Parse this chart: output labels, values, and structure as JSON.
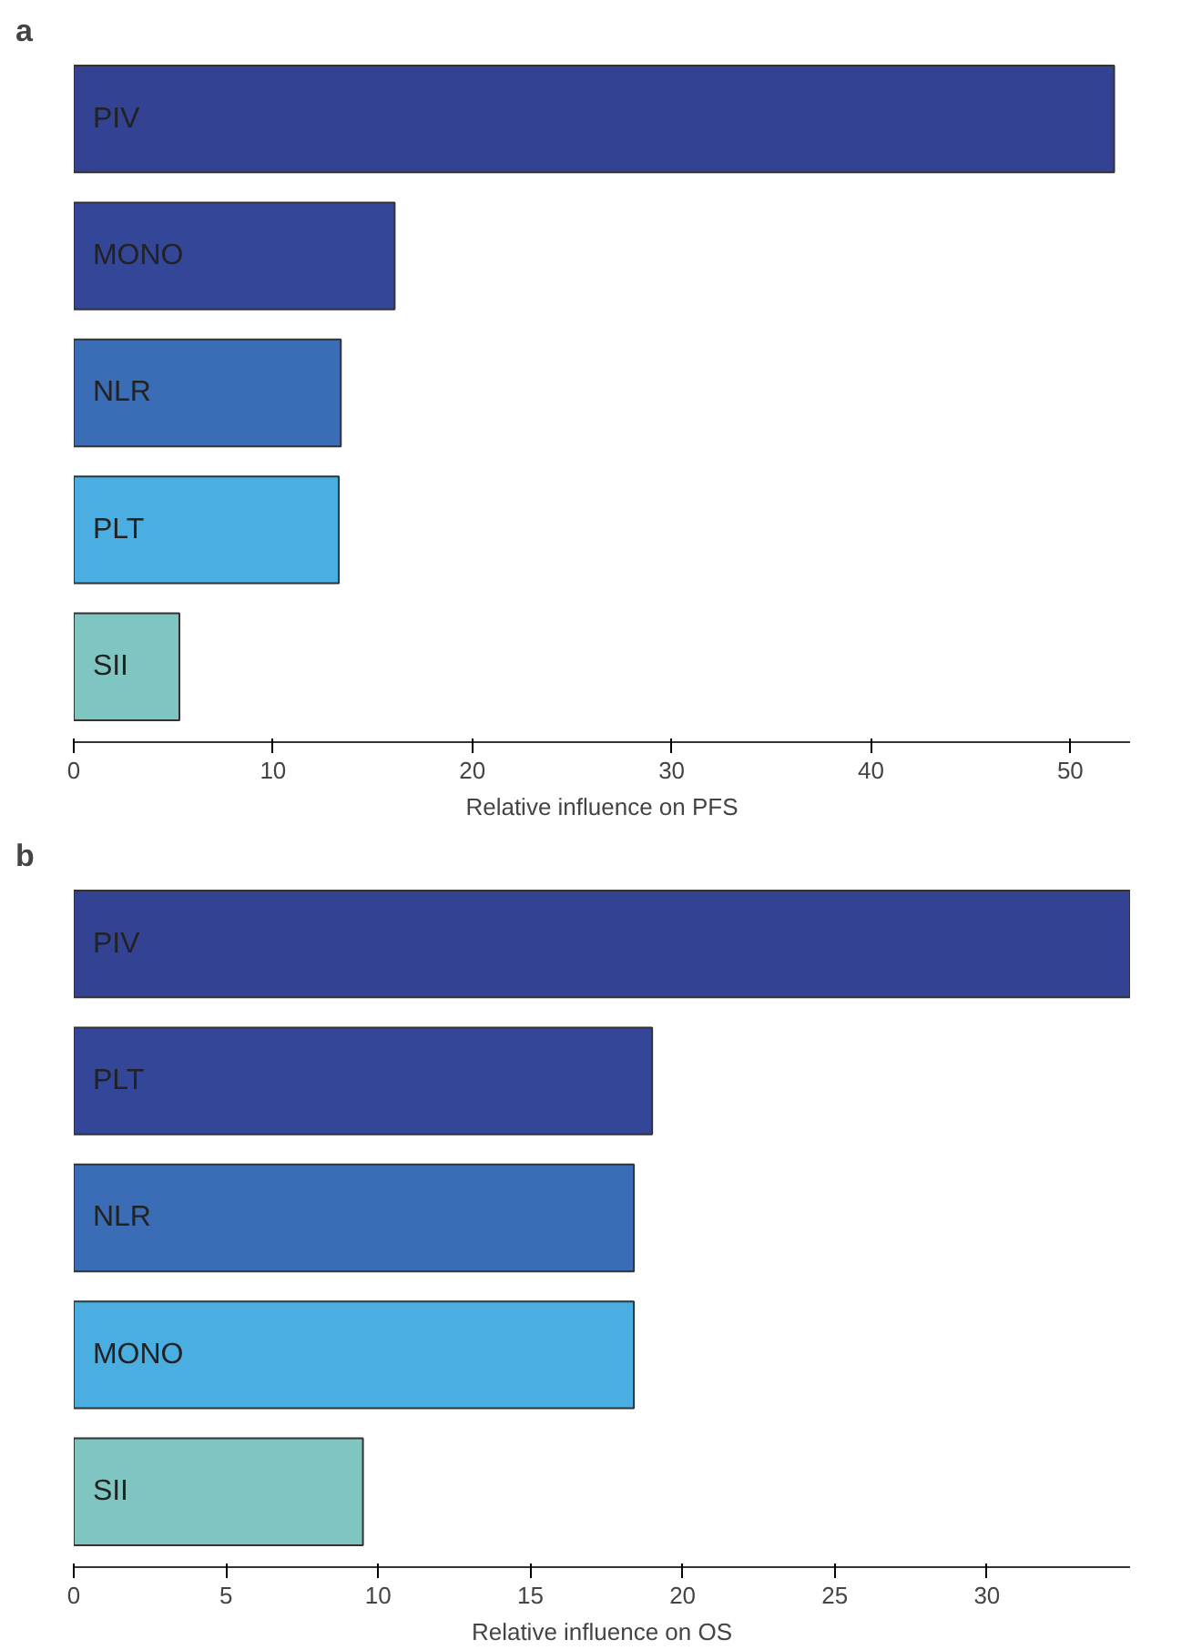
{
  "chart_data": [
    {
      "type": "bar",
      "orientation": "horizontal",
      "title": "a",
      "xlabel": "Relative influence on PFS",
      "categories": [
        "PIV",
        "MONO",
        "NLR",
        "PLT",
        "SII"
      ],
      "values": [
        52.2,
        16.1,
        13.4,
        13.3,
        5.3
      ],
      "colors": [
        "#344293",
        "#344698",
        "#3a6db5",
        "#4aaee0",
        "#7fc6c3"
      ],
      "xlim": [
        0,
        53
      ],
      "xticks": [
        0,
        10,
        20,
        30,
        40,
        50
      ],
      "tick_labels": "x"
    },
    {
      "type": "bar",
      "orientation": "horizontal",
      "title": "b",
      "xlabel": "Relative influence on OS",
      "categories": [
        "PIV",
        "PLT",
        "NLR",
        "MONO",
        "SII"
      ],
      "values": [
        34.7,
        19.0,
        18.4,
        18.4,
        9.5
      ],
      "colors": [
        "#344293",
        "#344698",
        "#3a6db5",
        "#4aaee0",
        "#7fc6c3"
      ],
      "xlim": [
        0,
        34.7
      ],
      "xticks": [
        0,
        5,
        10,
        15,
        20,
        25,
        30
      ],
      "tick_labels": "x"
    }
  ]
}
